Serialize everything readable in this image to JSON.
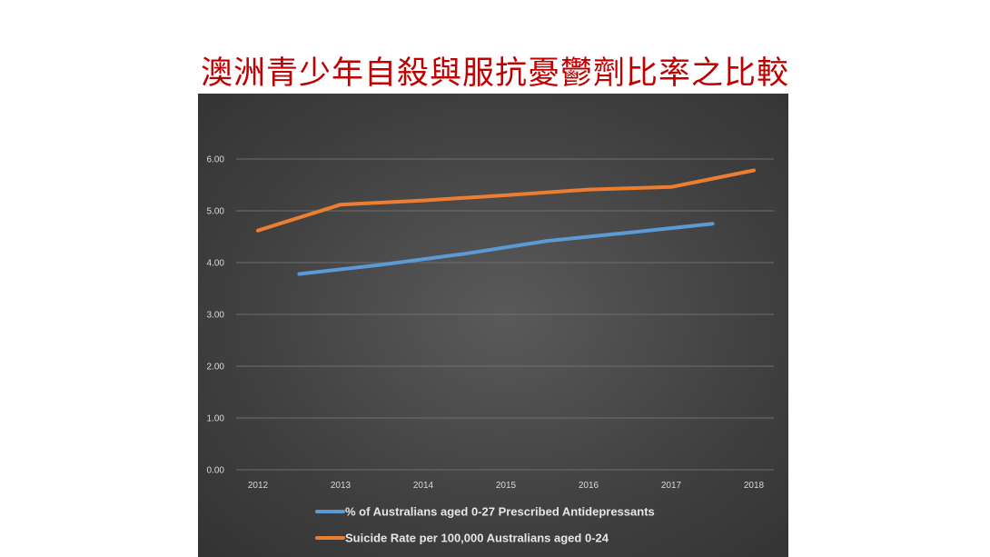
{
  "title": "澳洲青少年自殺與服抗憂鬱劑比率之比較",
  "chart_data": {
    "type": "line",
    "categories": [
      "2012",
      "2013",
      "2014",
      "2015",
      "2016",
      "2017",
      "2018"
    ],
    "ylim": [
      0,
      6
    ],
    "yticks": [
      "0.00",
      "1.00",
      "2.00",
      "3.00",
      "4.00",
      "5.00",
      "6.00"
    ],
    "grid": true,
    "legend_position": "bottom",
    "series": [
      {
        "name": "% of Australians aged 0-27 Prescribed Antidepressants",
        "color": "#5b9bd5",
        "x": [
          2012.5,
          2013.5,
          2014.5,
          2015.5,
          2016.5,
          2017.5
        ],
        "values": [
          3.78,
          3.96,
          4.17,
          4.42,
          4.58,
          4.75
        ]
      },
      {
        "name": "Suicide Rate per 100,000 Australians aged 0-24",
        "color": "#ed7d31",
        "x": [
          2012,
          2013,
          2014,
          2015,
          2016,
          2017,
          2018
        ],
        "values": [
          4.62,
          5.12,
          5.2,
          5.3,
          5.41,
          5.46,
          5.78
        ]
      }
    ]
  }
}
